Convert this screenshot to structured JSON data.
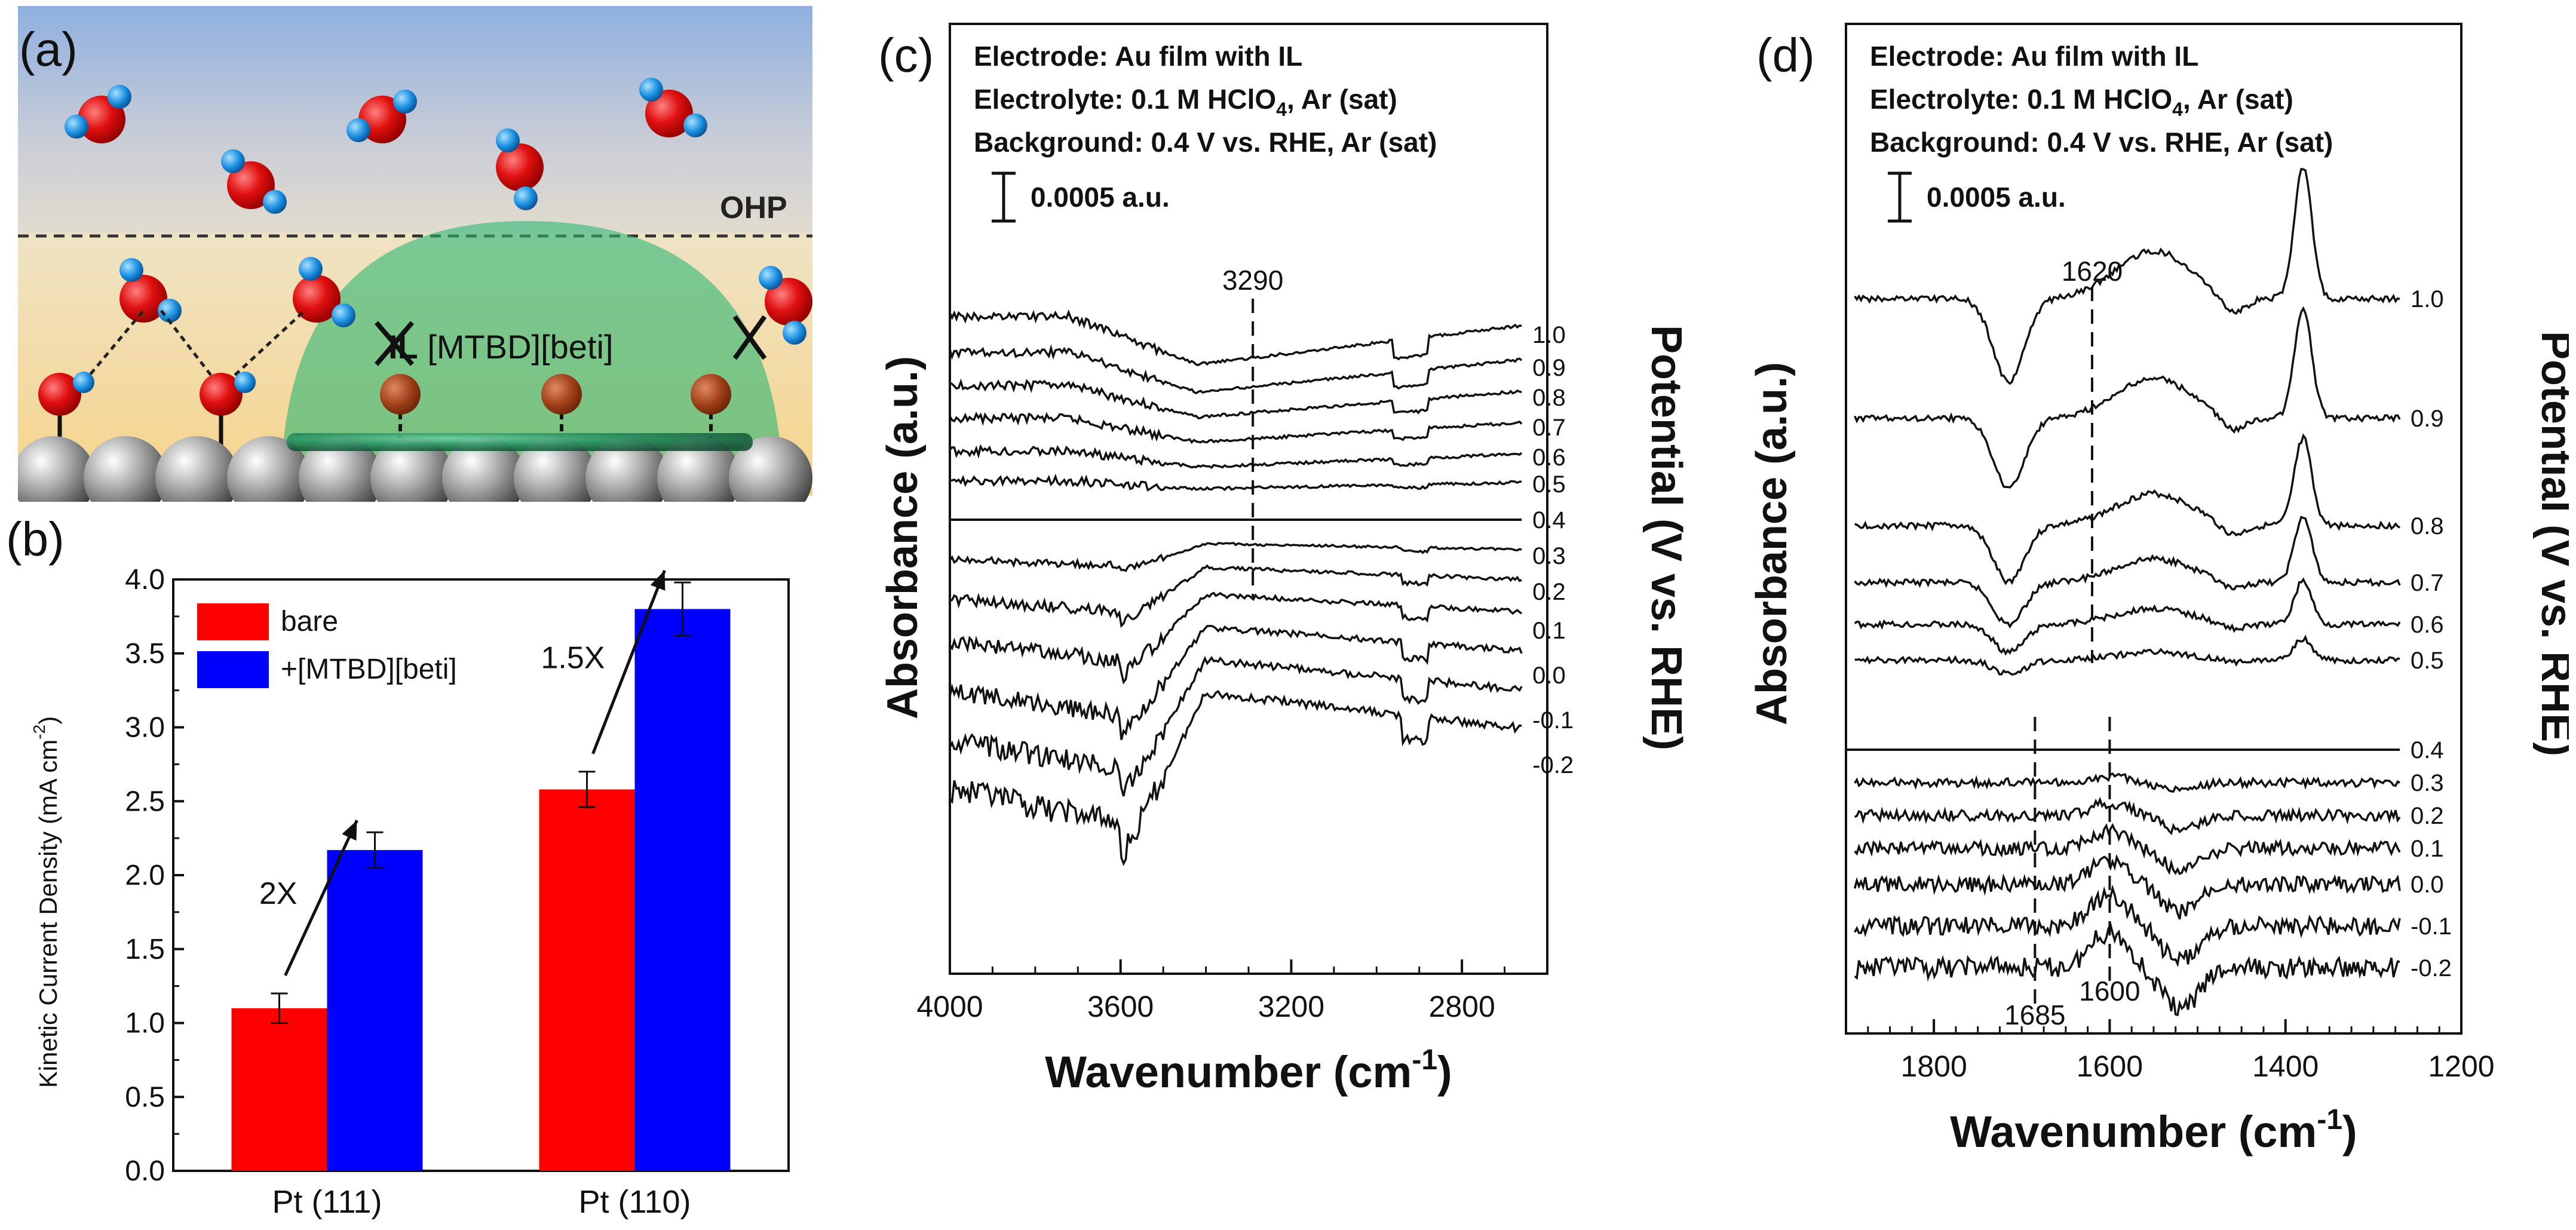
{
  "panel_labels": {
    "a": "(a)",
    "b": "(b)",
    "c": "(c)",
    "d": "(d)"
  },
  "schematic": {
    "ohp_label": "OHP",
    "il_bold": "IL",
    "il_name": "[MTBD][beti]"
  },
  "chart_data": [
    {
      "id": "b",
      "type": "bar",
      "title": "",
      "categories": [
        "Pt (111)",
        "Pt (110)"
      ],
      "series": [
        {
          "name": "bare",
          "color": "#ff0000",
          "values": [
            1.1,
            2.58
          ],
          "errors": [
            0.1,
            0.12
          ]
        },
        {
          "name": "+[MTBD][beti]",
          "color": "#0000ff",
          "values": [
            2.17,
            3.8
          ],
          "errors": [
            0.12,
            0.18
          ]
        }
      ],
      "ylabel": "Kinetic Current Density (mA cm",
      "ylabel_sup": "-2",
      "ylabel_close": ")",
      "ylim": [
        0,
        4.0
      ],
      "yticks": [
        "0.0",
        "0.5",
        "1.0",
        "1.5",
        "2.0",
        "2.5",
        "3.0",
        "3.5",
        "4.0"
      ],
      "annotations": [
        {
          "text": "2X",
          "category": "Pt (111)"
        },
        {
          "text": "1.5X",
          "category": "Pt (110)"
        }
      ],
      "legend_position": "top-left"
    },
    {
      "id": "c",
      "type": "line",
      "header": [
        "Electrode: Au film with IL",
        "Electrolyte: 0.1 M HClO",
        "Background: 0.4 V vs. RHE, Ar (sat)"
      ],
      "header_sub": "4",
      "header_suffix": ", Ar (sat)",
      "scale_bar": "0.0005 a.u.",
      "marker": "3290",
      "marker_x": 3290,
      "xlim": [
        4000,
        2600
      ],
      "xticks": [
        "4000",
        "3600",
        "3200",
        "2800"
      ],
      "xlabel": "Wavenumber (cm",
      "xlabel_sup": "-1",
      "xlabel_close": ")",
      "ylabel": "Absorbance (a.u.)",
      "potential_label": "Potential (V vs. RHE)",
      "series": [
        "1.0",
        "0.9",
        "0.8",
        "0.7",
        "0.6",
        "0.5",
        "0.4",
        "0.3",
        "0.2",
        "0.1",
        "0.0",
        "-0.1",
        "-0.2"
      ]
    },
    {
      "id": "d",
      "type": "line",
      "header": [
        "Electrode: Au film with IL",
        "Electrolyte: 0.1 M HClO",
        "Background: 0.4 V vs. RHE, Ar (sat)"
      ],
      "header_sub": "4",
      "header_suffix": ", Ar (sat)",
      "scale_bar": "0.0005 a.u.",
      "markers": [
        "1620",
        "1685",
        "1600"
      ],
      "xlim": [
        1900,
        1200
      ],
      "xticks": [
        "1800",
        "1600",
        "1400",
        "1200"
      ],
      "xlabel": "Wavenumber (cm",
      "xlabel_sup": "-1",
      "xlabel_close": ")",
      "ylabel": "Absorbance (a.u.)",
      "potential_label": "Potential (V vs. RHE)",
      "series": [
        "1.0",
        "0.9",
        "0.8",
        "0.7",
        "0.6",
        "0.5",
        "0.4",
        "0.3",
        "0.2",
        "0.1",
        "0.0",
        "-0.1",
        "-0.2"
      ]
    }
  ]
}
